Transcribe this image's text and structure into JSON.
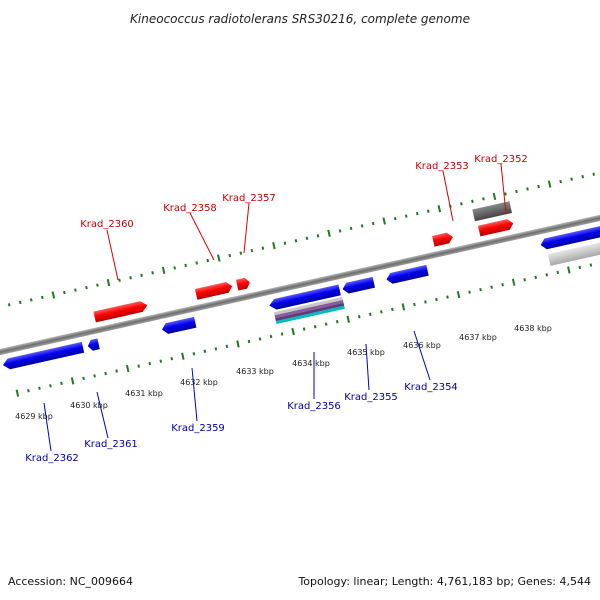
{
  "title": "Kineococcus radiotolerans SRS30216, complete genome",
  "footer": {
    "accession": "Accession: NC_009664",
    "topology": "Topology: linear; Length: 4,761,183 bp; Genes: 4,544"
  },
  "kbp_labels": [
    "4629 kbp",
    "4630 kbp",
    "4631 kbp",
    "4632 kbp",
    "4633 kbp",
    "4634 kbp",
    "4635 kbp",
    "4636 kbp",
    "4637 kbp",
    "4638 kbp"
  ],
  "genes_top": [
    "Krad_2360",
    "Krad_2358",
    "Krad_2357",
    "Krad_2353",
    "Krad_2352"
  ],
  "genes_bottom": [
    "Krad_2362",
    "Krad_2361",
    "Krad_2359",
    "Krad_2356",
    "Krad_2355",
    "Krad_2354"
  ],
  "colors": {
    "forward": "#ff0000",
    "reverse": "#0000ee",
    "top_label": "#cc0000",
    "bottom_label": "#0000aa",
    "backbone": "#8c8c8c",
    "tick": "#1f7a1f",
    "dark_feature": "#555555",
    "light_feature": "#c0c0c0",
    "rna_feature": "#00bcbc"
  }
}
